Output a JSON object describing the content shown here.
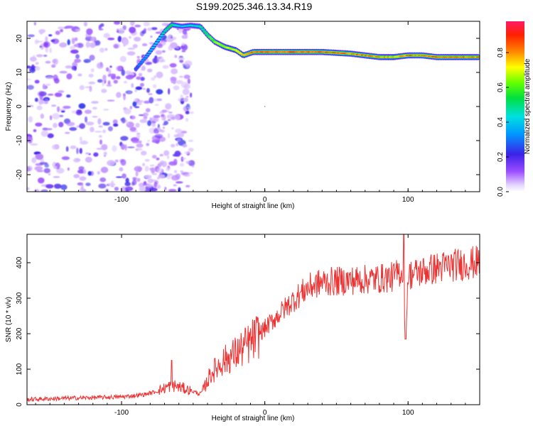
{
  "title": "S199.2025.346.13.34.R19",
  "colorbar": {
    "label": "Normalized spectral amplitude",
    "ticks": [
      "0.0",
      "0.2",
      "0.4",
      "0.6",
      "0.8"
    ],
    "tick_values": [
      0.0,
      0.2,
      0.4,
      0.6,
      0.8
    ],
    "range": [
      0,
      0.98
    ]
  },
  "chart_data": [
    {
      "type": "heatmap",
      "xlabel": "Height of straight line (km)",
      "ylabel": "Frequency (Hz)",
      "xlim": [
        -166,
        150
      ],
      "ylim": [
        -25,
        25
      ],
      "xticks": [
        -100,
        0,
        100
      ],
      "yticks": [
        -20,
        -10,
        0,
        10,
        20
      ],
      "ridge": {
        "description_free": true,
        "x": [
          -90,
          -82,
          -75,
          -70,
          -65,
          -58,
          -52,
          -45,
          -40,
          -35,
          -28,
          -20,
          -15,
          -8,
          0,
          20,
          40,
          60,
          70,
          80,
          90,
          100,
          110,
          120,
          130,
          140,
          150
        ],
        "y": [
          11,
          15,
          19,
          22,
          24,
          23.5,
          23.8,
          23.5,
          21,
          19,
          17.5,
          16.5,
          15,
          16,
          16,
          16,
          16,
          15.5,
          15,
          14.5,
          14.5,
          15,
          15,
          14.5,
          14.5,
          14.5,
          14.5
        ],
        "amplitude": [
          0.3,
          0.4,
          0.45,
          0.5,
          0.55,
          0.4,
          0.45,
          0.5,
          0.6,
          0.65,
          0.7,
          0.75,
          0.8,
          0.85,
          0.9,
          0.9,
          0.88,
          0.85,
          0.85,
          0.82,
          0.8,
          0.85,
          0.85,
          0.88,
          0.88,
          0.85,
          0.85
        ]
      }
    },
    {
      "type": "line",
      "xlabel": "Height of straight line (km)",
      "ylabel": "SNR (10 * v/v)",
      "xlim": [
        -166,
        150
      ],
      "ylim": [
        0,
        480
      ],
      "xticks": [
        -100,
        0,
        100
      ],
      "yticks": [
        0,
        100,
        200,
        300,
        400
      ],
      "color": "#ee3333",
      "series": [
        {
          "x": [
            -166,
            -140,
            -120,
            -100,
            -85,
            -75,
            -65,
            -60,
            -52,
            -45,
            -42,
            -38,
            -30,
            -20,
            -10,
            0,
            10,
            20,
            30,
            40,
            60,
            80,
            90,
            96,
            98,
            100,
            110,
            120,
            130,
            140,
            150
          ],
          "values": [
            15,
            18,
            20,
            22,
            28,
            38,
            55,
            50,
            40,
            30,
            50,
            85,
            120,
            145,
            175,
            215,
            255,
            295,
            330,
            345,
            350,
            355,
            360,
            380,
            180,
            365,
            375,
            385,
            392,
            397,
            402
          ]
        }
      ]
    }
  ]
}
